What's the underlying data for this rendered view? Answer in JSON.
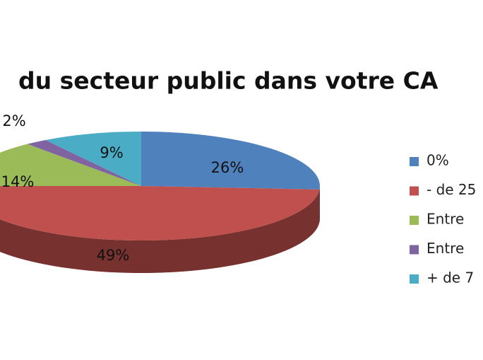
{
  "chart_data": {
    "type": "pie",
    "title": "du secteur public dans votre CA",
    "categories": [
      "0%",
      "- de 25",
      "Entre",
      "Entre",
      "+ de 7"
    ],
    "values": [
      26,
      49,
      14,
      2,
      9
    ],
    "value_labels": [
      "26%",
      "49%",
      "14%",
      "2%",
      "9%"
    ],
    "colors": [
      "#4f81bd",
      "#c0504d",
      "#9bbb59",
      "#8064a2",
      "#4bacc6"
    ],
    "legend": "right"
  }
}
